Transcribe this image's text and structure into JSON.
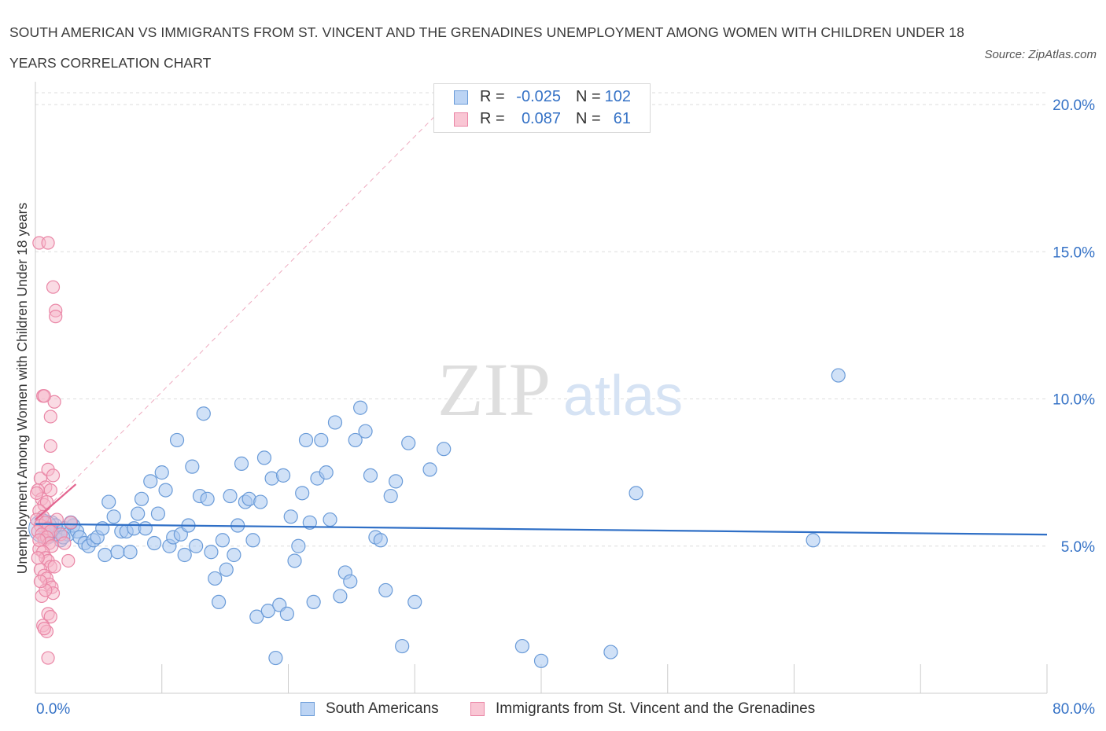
{
  "title": "SOUTH AMERICAN VS IMMIGRANTS FROM ST. VINCENT AND THE GRENADINES UNEMPLOYMENT AMONG WOMEN WITH CHILDREN UNDER 18 YEARS CORRELATION CHART",
  "source": "Source: ZipAtlas.com",
  "watermark": {
    "zip": "ZIP",
    "atlas": "atlas"
  },
  "legend_top": {
    "rows": [
      {
        "r_label": "R =",
        "r_value": "-0.025",
        "n_label": "N =",
        "n_value": "102"
      },
      {
        "r_label": "R =",
        "r_value": "0.087",
        "n_label": "N =",
        "n_value": "61"
      }
    ]
  },
  "legend_bottom": {
    "series1": "South Americans",
    "series2": "Immigrants from St. Vincent and the Grenadines"
  },
  "colors": {
    "blue_fill": "#a9c8f0",
    "blue_stroke": "#6a9bd8",
    "blue_line": "#2f6fc6",
    "pink_fill": "#f6b8ca",
    "pink_stroke": "#ea86a6",
    "pink_line": "#e3648f",
    "axis_text": "#3572c6",
    "grid": "#dddddd"
  },
  "chart_data": {
    "type": "scatter",
    "title": "SOUTH AMERICAN VS IMMIGRANTS FROM ST. VINCENT AND THE GRENADINES UNEMPLOYMENT AMONG WOMEN WITH CHILDREN UNDER 18 YEARS CORRELATION CHART",
    "xlabel": "",
    "ylabel": "Unemployment Among Women with Children Under 18 years",
    "xlim": [
      0,
      80
    ],
    "ylim": [
      0,
      20
    ],
    "x_tick_labels": {
      "min": "0.0%",
      "max": "80.0%"
    },
    "y_ticks": [
      {
        "value": 5,
        "label": "5.0%"
      },
      {
        "value": 10,
        "label": "10.0%"
      },
      {
        "value": 15,
        "label": "15.0%"
      },
      {
        "value": 20,
        "label": "20.0%"
      }
    ],
    "grid": true,
    "legend_position": "bottom",
    "series": [
      {
        "name": "South Americans",
        "R": -0.025,
        "N": 102,
        "trend": {
          "x0": 0,
          "y0": 5.75,
          "x1": 80,
          "y1": 5.39
        },
        "points": [
          [
            0.8,
            5.6
          ],
          [
            1.0,
            5.3
          ],
          [
            1.3,
            5.8
          ],
          [
            1.5,
            5.4
          ],
          [
            1.8,
            5.5
          ],
          [
            2.0,
            5.2
          ],
          [
            2.3,
            5.6
          ],
          [
            2.6,
            5.4
          ],
          [
            3.0,
            5.7
          ],
          [
            3.3,
            5.5
          ],
          [
            0.5,
            5.9
          ],
          [
            0.7,
            5.3
          ],
          [
            1.1,
            5.5
          ],
          [
            1.6,
            5.7
          ],
          [
            2.2,
            5.3
          ],
          [
            2.8,
            5.8
          ],
          [
            3.5,
            5.3
          ],
          [
            3.9,
            5.1
          ],
          [
            4.2,
            5.0
          ],
          [
            4.6,
            5.2
          ],
          [
            4.9,
            5.3
          ],
          [
            5.3,
            5.6
          ],
          [
            5.5,
            4.7
          ],
          [
            5.8,
            6.5
          ],
          [
            6.2,
            6.0
          ],
          [
            6.5,
            4.8
          ],
          [
            6.8,
            5.5
          ],
          [
            7.2,
            5.5
          ],
          [
            7.5,
            4.8
          ],
          [
            7.8,
            5.6
          ],
          [
            8.1,
            6.1
          ],
          [
            8.4,
            6.6
          ],
          [
            8.7,
            5.6
          ],
          [
            9.1,
            7.2
          ],
          [
            9.4,
            5.1
          ],
          [
            9.7,
            6.1
          ],
          [
            10.0,
            7.5
          ],
          [
            10.3,
            6.9
          ],
          [
            10.6,
            5.0
          ],
          [
            10.9,
            5.3
          ],
          [
            11.2,
            8.6
          ],
          [
            11.5,
            5.4
          ],
          [
            11.8,
            4.7
          ],
          [
            12.1,
            5.7
          ],
          [
            12.4,
            7.7
          ],
          [
            12.7,
            5.0
          ],
          [
            13.0,
            6.7
          ],
          [
            13.3,
            9.5
          ],
          [
            13.6,
            6.6
          ],
          [
            13.9,
            4.8
          ],
          [
            14.2,
            3.9
          ],
          [
            14.5,
            3.1
          ],
          [
            14.8,
            5.2
          ],
          [
            15.1,
            4.2
          ],
          [
            15.4,
            6.7
          ],
          [
            15.7,
            4.7
          ],
          [
            16.0,
            5.7
          ],
          [
            16.3,
            7.8
          ],
          [
            16.6,
            6.5
          ],
          [
            16.9,
            6.6
          ],
          [
            17.2,
            5.2
          ],
          [
            17.5,
            2.6
          ],
          [
            17.8,
            6.5
          ],
          [
            18.1,
            8.0
          ],
          [
            18.4,
            2.8
          ],
          [
            18.7,
            7.3
          ],
          [
            19.0,
            1.2
          ],
          [
            19.3,
            3.0
          ],
          [
            19.6,
            7.4
          ],
          [
            19.9,
            2.7
          ],
          [
            20.2,
            6.0
          ],
          [
            20.5,
            4.5
          ],
          [
            20.8,
            5.0
          ],
          [
            21.1,
            6.8
          ],
          [
            21.4,
            8.6
          ],
          [
            21.7,
            5.8
          ],
          [
            22.0,
            3.1
          ],
          [
            22.3,
            7.3
          ],
          [
            22.6,
            8.6
          ],
          [
            23.0,
            7.5
          ],
          [
            23.3,
            5.9
          ],
          [
            23.7,
            9.2
          ],
          [
            24.1,
            3.3
          ],
          [
            24.5,
            4.1
          ],
          [
            24.9,
            3.8
          ],
          [
            25.3,
            8.6
          ],
          [
            25.7,
            9.7
          ],
          [
            26.1,
            8.9
          ],
          [
            26.5,
            7.4
          ],
          [
            26.9,
            5.3
          ],
          [
            27.3,
            5.2
          ],
          [
            27.7,
            3.5
          ],
          [
            28.1,
            6.7
          ],
          [
            28.5,
            7.2
          ],
          [
            29.0,
            1.6
          ],
          [
            29.5,
            8.5
          ],
          [
            30.0,
            3.1
          ],
          [
            31.2,
            7.6
          ],
          [
            32.3,
            8.3
          ],
          [
            38.5,
            1.6
          ],
          [
            40.0,
            1.1
          ],
          [
            45.5,
            1.4
          ],
          [
            47.5,
            6.8
          ],
          [
            63.5,
            10.8
          ],
          [
            61.5,
            5.2
          ]
        ]
      },
      {
        "name": "Immigrants from St. Vincent and the Grenadines",
        "R": 0.087,
        "N": 61,
        "trend": {
          "x0": 0,
          "y0": 5.9,
          "x1": 3.2,
          "y1": 7.1
        },
        "trend_extension": {
          "x0": 0,
          "y0": 5.9,
          "x1": 32.5,
          "y1": 20.0
        },
        "points": [
          [
            0.3,
            15.3
          ],
          [
            0.6,
            10.1
          ],
          [
            1.0,
            15.3
          ],
          [
            1.4,
            13.8
          ],
          [
            1.6,
            13.0
          ],
          [
            1.6,
            12.8
          ],
          [
            1.2,
            9.4
          ],
          [
            1.5,
            9.9
          ],
          [
            0.7,
            10.1
          ],
          [
            1.2,
            8.4
          ],
          [
            0.4,
            7.3
          ],
          [
            0.8,
            7.0
          ],
          [
            1.0,
            7.6
          ],
          [
            1.2,
            6.9
          ],
          [
            1.4,
            7.4
          ],
          [
            0.2,
            6.9
          ],
          [
            0.5,
            6.6
          ],
          [
            0.7,
            6.4
          ],
          [
            0.9,
            6.5
          ],
          [
            0.3,
            6.2
          ],
          [
            0.6,
            6.0
          ],
          [
            0.1,
            5.9
          ],
          [
            0.4,
            5.7
          ],
          [
            0.8,
            5.8
          ],
          [
            1.0,
            5.6
          ],
          [
            1.2,
            5.5
          ],
          [
            0.2,
            5.5
          ],
          [
            0.5,
            5.4
          ],
          [
            0.7,
            5.2
          ],
          [
            0.9,
            5.3
          ],
          [
            1.1,
            5.1
          ],
          [
            1.3,
            5.0
          ],
          [
            0.3,
            4.9
          ],
          [
            0.6,
            4.8
          ],
          [
            0.8,
            4.6
          ],
          [
            1.0,
            4.5
          ],
          [
            1.2,
            4.3
          ],
          [
            0.4,
            4.2
          ],
          [
            0.7,
            4.0
          ],
          [
            0.9,
            3.9
          ],
          [
            1.1,
            3.7
          ],
          [
            1.3,
            3.6
          ],
          [
            1.4,
            3.4
          ],
          [
            0.5,
            3.3
          ],
          [
            0.8,
            3.5
          ],
          [
            1.0,
            2.7
          ],
          [
            1.2,
            2.6
          ],
          [
            0.6,
            2.3
          ],
          [
            0.9,
            2.1
          ],
          [
            0.7,
            2.2
          ],
          [
            1.0,
            1.2
          ],
          [
            0.2,
            4.6
          ],
          [
            0.4,
            3.8
          ],
          [
            1.5,
            4.3
          ],
          [
            1.7,
            5.9
          ],
          [
            2.0,
            5.4
          ],
          [
            2.3,
            5.1
          ],
          [
            2.6,
            4.5
          ],
          [
            2.8,
            5.8
          ],
          [
            0.1,
            6.8
          ],
          [
            0.3,
            5.2
          ]
        ]
      }
    ]
  }
}
